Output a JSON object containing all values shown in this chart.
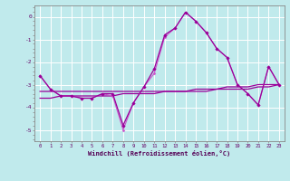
{
  "xlabel": "Windchill (Refroidissement éolien,°C)",
  "background_color": "#c0eaec",
  "grid_color": "#aad8dc",
  "line_color_main": "#990099",
  "line_color_alt": "#cc55cc",
  "x_hours": [
    0,
    1,
    2,
    3,
    4,
    5,
    6,
    7,
    8,
    9,
    10,
    11,
    12,
    13,
    14,
    15,
    16,
    17,
    18,
    19,
    20,
    21,
    22,
    23
  ],
  "series1": [
    -2.6,
    -3.2,
    -3.5,
    -3.5,
    -3.6,
    -3.6,
    -3.4,
    -3.4,
    -4.8,
    -3.8,
    -3.1,
    -2.3,
    -0.8,
    -0.5,
    0.2,
    -0.2,
    -0.7,
    -1.4,
    -1.8,
    -3.0,
    -3.4,
    -3.9,
    -2.2,
    -3.0
  ],
  "series2": [
    -2.6,
    -3.2,
    -3.5,
    -3.5,
    -3.6,
    -3.6,
    -3.4,
    -3.5,
    -5.0,
    -3.8,
    -3.1,
    -2.5,
    -0.9,
    -0.5,
    0.2,
    -0.2,
    -0.7,
    -1.4,
    -1.8,
    -3.0,
    -3.4,
    -3.9,
    -2.2,
    -3.0
  ],
  "trend1": [
    -3.3,
    -3.3,
    -3.3,
    -3.3,
    -3.3,
    -3.3,
    -3.3,
    -3.3,
    -3.3,
    -3.3,
    -3.3,
    -3.3,
    -3.3,
    -3.3,
    -3.3,
    -3.2,
    -3.2,
    -3.2,
    -3.1,
    -3.1,
    -3.1,
    -3.0,
    -3.0,
    -3.0
  ],
  "trend2": [
    -3.6,
    -3.6,
    -3.5,
    -3.5,
    -3.5,
    -3.5,
    -3.5,
    -3.5,
    -3.4,
    -3.4,
    -3.4,
    -3.4,
    -3.3,
    -3.3,
    -3.3,
    -3.3,
    -3.3,
    -3.2,
    -3.2,
    -3.2,
    -3.2,
    -3.1,
    -3.1,
    -3.0
  ],
  "ylim": [
    -5.5,
    0.5
  ],
  "yticks": [
    0,
    -1,
    -2,
    -3,
    -4,
    -5
  ],
  "xticks": [
    0,
    1,
    2,
    3,
    4,
    5,
    6,
    7,
    8,
    9,
    10,
    11,
    12,
    13,
    14,
    15,
    16,
    17,
    18,
    19,
    20,
    21,
    22,
    23
  ]
}
